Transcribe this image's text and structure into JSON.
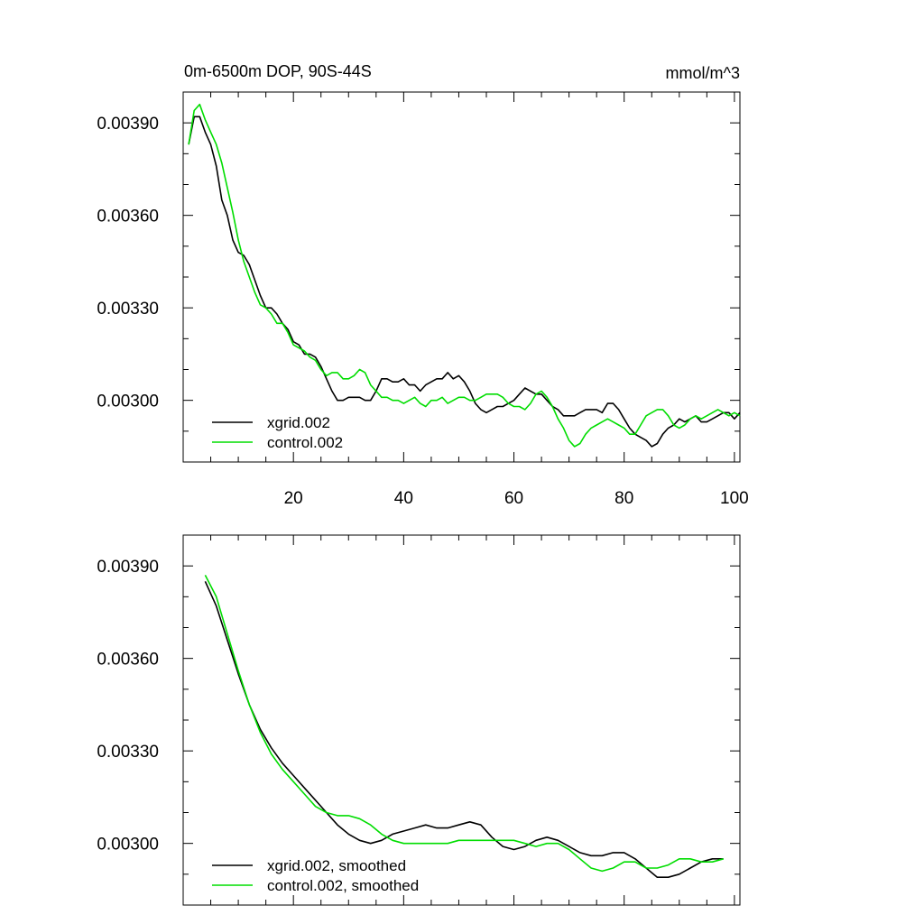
{
  "chart_data": [
    {
      "type": "line",
      "title": "0m-6500m DOP, 90S-44S",
      "units": "mmol/m^3",
      "xlim": [
        0,
        101
      ],
      "ylim": [
        0.0028,
        0.004
      ],
      "xticks": [
        20,
        40,
        60,
        80,
        100
      ],
      "xtick_labels": [
        "20",
        "40",
        "60",
        "80",
        "100"
      ],
      "yticks": [
        0.003,
        0.0033,
        0.0036,
        0.0039
      ],
      "ytick_labels": [
        "0.00300",
        "0.00330",
        "0.00360",
        "0.00390"
      ],
      "colors": {
        "xgrid": "#000000",
        "control": "#00dd00"
      },
      "series": [
        {
          "name": "xgrid.002",
          "color": "#000000",
          "x": [
            1,
            2,
            3,
            4,
            5,
            6,
            7,
            8,
            9,
            10,
            11,
            12,
            13,
            14,
            15,
            16,
            17,
            18,
            19,
            20,
            21,
            22,
            23,
            24,
            25,
            26,
            27,
            28,
            29,
            30,
            31,
            32,
            33,
            34,
            35,
            36,
            37,
            38,
            39,
            40,
            41,
            42,
            43,
            44,
            45,
            46,
            47,
            48,
            49,
            50,
            51,
            52,
            53,
            54,
            55,
            56,
            57,
            58,
            59,
            60,
            61,
            62,
            63,
            64,
            65,
            66,
            67,
            68,
            69,
            70,
            71,
            72,
            73,
            74,
            75,
            76,
            77,
            78,
            79,
            80,
            81,
            82,
            83,
            84,
            85,
            86,
            87,
            88,
            89,
            90,
            91,
            92,
            93,
            94,
            95,
            96,
            97,
            98,
            99,
            100,
            101
          ],
          "values": [
            0.00383,
            0.00392,
            0.00392,
            0.00387,
            0.00383,
            0.00376,
            0.00365,
            0.0036,
            0.00352,
            0.00348,
            0.00347,
            0.00344,
            0.00339,
            0.00334,
            0.0033,
            0.0033,
            0.00328,
            0.00325,
            0.00323,
            0.00319,
            0.00318,
            0.00315,
            0.00315,
            0.00314,
            0.00311,
            0.00307,
            0.00303,
            0.003,
            0.003,
            0.00301,
            0.00301,
            0.00301,
            0.003,
            0.003,
            0.00303,
            0.00307,
            0.00307,
            0.00306,
            0.00306,
            0.00307,
            0.00305,
            0.00305,
            0.00303,
            0.00305,
            0.00306,
            0.00307,
            0.00307,
            0.00309,
            0.00307,
            0.00308,
            0.00306,
            0.00303,
            0.00299,
            0.00297,
            0.00296,
            0.00297,
            0.00298,
            0.00298,
            0.00299,
            0.003,
            0.00302,
            0.00304,
            0.00303,
            0.00302,
            0.00302,
            0.003,
            0.00298,
            0.00297,
            0.00295,
            0.00295,
            0.00295,
            0.00296,
            0.00297,
            0.00297,
            0.00297,
            0.00296,
            0.00299,
            0.00299,
            0.00297,
            0.00294,
            0.00291,
            0.00289,
            0.00288,
            0.00287,
            0.00285,
            0.00286,
            0.00289,
            0.00291,
            0.00292,
            0.00294,
            0.00293,
            0.00294,
            0.00295,
            0.00293,
            0.00293,
            0.00294,
            0.00295,
            0.00296,
            0.00296,
            0.00294,
            0.00296
          ]
        },
        {
          "name": "control.002",
          "color": "#00dd00",
          "x": [
            1,
            2,
            3,
            4,
            5,
            6,
            7,
            8,
            9,
            10,
            11,
            12,
            13,
            14,
            15,
            16,
            17,
            18,
            19,
            20,
            21,
            22,
            23,
            24,
            25,
            26,
            27,
            28,
            29,
            30,
            31,
            32,
            33,
            34,
            35,
            36,
            37,
            38,
            39,
            40,
            41,
            42,
            43,
            44,
            45,
            46,
            47,
            48,
            49,
            50,
            51,
            52,
            53,
            54,
            55,
            56,
            57,
            58,
            59,
            60,
            61,
            62,
            63,
            64,
            65,
            66,
            67,
            68,
            69,
            70,
            71,
            72,
            73,
            74,
            75,
            76,
            77,
            78,
            79,
            80,
            81,
            82,
            83,
            84,
            85,
            86,
            87,
            88,
            89,
            90,
            91,
            92,
            93,
            94,
            95,
            96,
            97,
            98,
            99,
            100,
            101
          ],
          "values": [
            0.00383,
            0.00394,
            0.00396,
            0.00391,
            0.00387,
            0.00383,
            0.00377,
            0.00369,
            0.00361,
            0.00352,
            0.00345,
            0.0034,
            0.00335,
            0.00331,
            0.0033,
            0.00328,
            0.00325,
            0.00325,
            0.00322,
            0.00318,
            0.00317,
            0.00316,
            0.00314,
            0.00313,
            0.0031,
            0.00308,
            0.00309,
            0.00309,
            0.00307,
            0.00307,
            0.00308,
            0.0031,
            0.00309,
            0.00305,
            0.00303,
            0.00301,
            0.00301,
            0.003,
            0.003,
            0.00299,
            0.003,
            0.00301,
            0.00299,
            0.00298,
            0.003,
            0.003,
            0.00301,
            0.00299,
            0.003,
            0.00301,
            0.00301,
            0.003,
            0.003,
            0.00301,
            0.00302,
            0.00302,
            0.00302,
            0.00301,
            0.00299,
            0.00298,
            0.00298,
            0.00297,
            0.00299,
            0.00302,
            0.00303,
            0.00301,
            0.00298,
            0.00294,
            0.00291,
            0.00287,
            0.00285,
            0.00286,
            0.00289,
            0.00291,
            0.00292,
            0.00293,
            0.00294,
            0.00293,
            0.00292,
            0.00291,
            0.00289,
            0.00289,
            0.00292,
            0.00295,
            0.00296,
            0.00297,
            0.00297,
            0.00295,
            0.00292,
            0.00291,
            0.00292,
            0.00294,
            0.00295,
            0.00294,
            0.00295,
            0.00296,
            0.00297,
            0.00296,
            0.00295,
            0.00296,
            0.00295
          ]
        }
      ]
    },
    {
      "type": "line",
      "title": "",
      "xlim": [
        0,
        101
      ],
      "ylim": [
        0.0028,
        0.004
      ],
      "xticks": [
        20,
        40,
        60,
        80,
        100
      ],
      "yticks": [
        0.003,
        0.0033,
        0.0036,
        0.0039
      ],
      "ytick_labels": [
        "0.00300",
        "0.00330",
        "0.00360",
        "0.00390"
      ],
      "series": [
        {
          "name": "xgrid.002, smoothed",
          "color": "#000000",
          "x": [
            4,
            6,
            8,
            10,
            12,
            14,
            16,
            18,
            20,
            22,
            24,
            26,
            28,
            30,
            32,
            34,
            36,
            38,
            40,
            42,
            44,
            46,
            48,
            50,
            52,
            54,
            56,
            58,
            60,
            62,
            64,
            66,
            68,
            70,
            72,
            74,
            76,
            78,
            80,
            82,
            84,
            86,
            88,
            90,
            92,
            94,
            96,
            98
          ],
          "values": [
            0.00385,
            0.00377,
            0.00366,
            0.00355,
            0.00345,
            0.00337,
            0.00331,
            0.00326,
            0.00322,
            0.00318,
            0.00314,
            0.0031,
            0.00306,
            0.00303,
            0.00301,
            0.003,
            0.00301,
            0.00303,
            0.00304,
            0.00305,
            0.00306,
            0.00305,
            0.00305,
            0.00306,
            0.00307,
            0.00306,
            0.00302,
            0.00299,
            0.00298,
            0.00299,
            0.00301,
            0.00302,
            0.00301,
            0.00299,
            0.00297,
            0.00296,
            0.00296,
            0.00297,
            0.00297,
            0.00295,
            0.00292,
            0.00289,
            0.00289,
            0.0029,
            0.00292,
            0.00294,
            0.00295,
            0.00295
          ]
        },
        {
          "name": "control.002, smoothed",
          "color": "#00dd00",
          "x": [
            4,
            6,
            8,
            10,
            12,
            14,
            16,
            18,
            20,
            22,
            24,
            26,
            28,
            30,
            32,
            34,
            36,
            38,
            40,
            42,
            44,
            46,
            48,
            50,
            52,
            54,
            56,
            58,
            60,
            62,
            64,
            66,
            68,
            70,
            72,
            74,
            76,
            78,
            80,
            82,
            84,
            86,
            88,
            90,
            92,
            94,
            96,
            98
          ],
          "values": [
            0.00387,
            0.0038,
            0.00368,
            0.00356,
            0.00345,
            0.00336,
            0.00329,
            0.00324,
            0.0032,
            0.00316,
            0.00312,
            0.0031,
            0.00309,
            0.00309,
            0.00308,
            0.00306,
            0.00303,
            0.00301,
            0.003,
            0.003,
            0.003,
            0.003,
            0.003,
            0.00301,
            0.00301,
            0.00301,
            0.00301,
            0.00301,
            0.00301,
            0.003,
            0.00299,
            0.003,
            0.003,
            0.00298,
            0.00295,
            0.00292,
            0.00291,
            0.00292,
            0.00294,
            0.00294,
            0.00292,
            0.00292,
            0.00293,
            0.00295,
            0.00295,
            0.00294,
            0.00294,
            0.00295
          ]
        }
      ]
    }
  ]
}
